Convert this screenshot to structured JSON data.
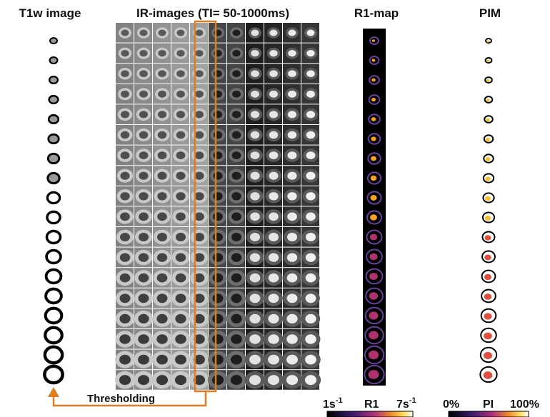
{
  "columns": {
    "t1w": "T1w image",
    "ir": "IR-images (TI= 50-1000ms)",
    "r1": "R1-map",
    "pim": "PIM"
  },
  "annotation": "Thresholding",
  "colorbars": {
    "r1": {
      "min": {
        "base": "1s",
        "sup": "-1"
      },
      "label": "R1",
      "max": {
        "base": "7s",
        "sup": "-1"
      }
    },
    "pi": {
      "min": "0%",
      "label": "PI",
      "max": "100%"
    }
  }
}
